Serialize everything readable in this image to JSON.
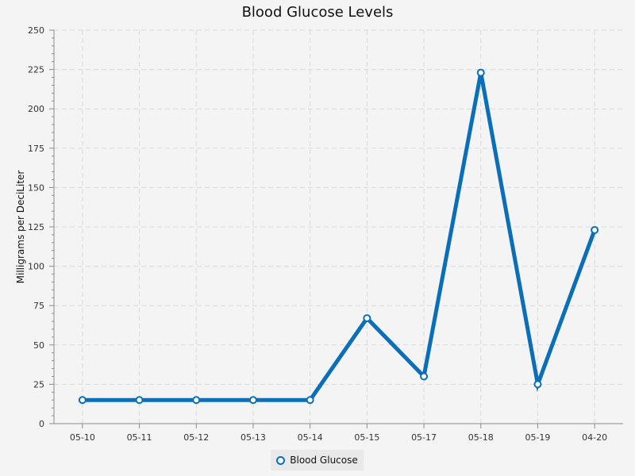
{
  "chart_data": {
    "type": "line",
    "title": "Blood Glucose Levels",
    "ylabel": "Milligrams per DeciLiter",
    "xlabel": "",
    "categories": [
      "05-10",
      "05-11",
      "05-12",
      "05-13",
      "05-14",
      "05-15",
      "05-17",
      "05-18",
      "05-19",
      "04-20"
    ],
    "series": [
      {
        "name": "Blood Glucose",
        "color": "#0a6fb6",
        "values": [
          15,
          15,
          15,
          15,
          15,
          67,
          30,
          223,
          25,
          123
        ]
      }
    ],
    "ylim": [
      0,
      250
    ],
    "yticks": [
      "0",
      "25",
      "50",
      "75",
      "100",
      "125",
      "150",
      "175",
      "200",
      "225",
      "250"
    ],
    "grid": true,
    "legend_position": "bottom-center"
  }
}
